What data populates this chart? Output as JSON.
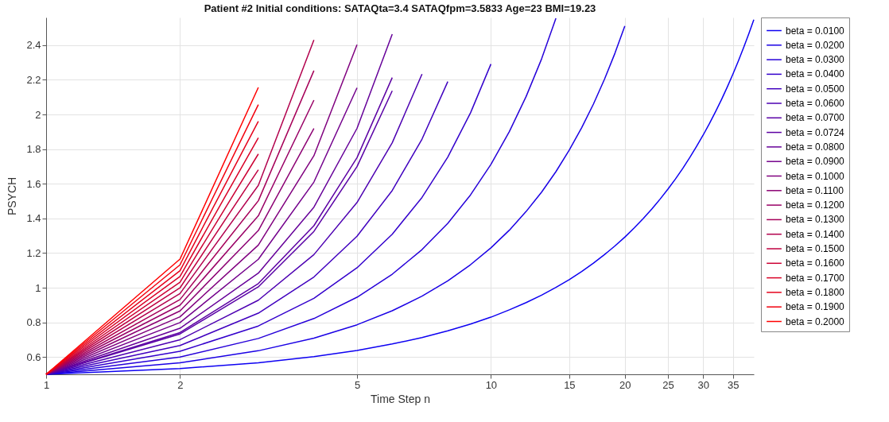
{
  "chart_data": {
    "type": "line",
    "title": "Patient #2 Initial conditions:  SATAQta=3.4 SATAQfpm=3.5833 Age=23 BMI=19.23",
    "xlabel": "Time Step n",
    "ylabel": "PSYCH",
    "log": "x",
    "grid": true,
    "legend": "right",
    "line_style": "solid",
    "xlim": [
      1,
      39
    ],
    "xticks": [
      1,
      2,
      5,
      10,
      15,
      20,
      25,
      30,
      35
    ],
    "ylim": [
      0.5,
      2.56
    ],
    "yticks": [
      0.6,
      0.8,
      1,
      1.2,
      1.4,
      1.6,
      1.8,
      2,
      2.2,
      2.4
    ],
    "series": [
      {
        "name": "beta = 0.0100",
        "color": "#0d00f2",
        "x": [
          1,
          2,
          3,
          4,
          5,
          6,
          7,
          8,
          9,
          10,
          11,
          12,
          13,
          14,
          15,
          16,
          17,
          18,
          19,
          20,
          21,
          22,
          23,
          24,
          25,
          26,
          27,
          28,
          29,
          30,
          31,
          32,
          33,
          34,
          35,
          36,
          37,
          38,
          39
        ],
        "values": [
          0.5,
          0.533,
          0.567,
          0.602,
          0.638,
          0.675,
          0.712,
          0.751,
          0.79,
          0.83,
          0.872,
          0.914,
          0.957,
          1.002,
          1.047,
          1.094,
          1.142,
          1.191,
          1.241,
          1.292,
          1.345,
          1.399,
          1.454,
          1.511,
          1.569,
          1.628,
          1.689,
          1.752,
          1.816,
          1.881,
          1.948,
          2.017,
          2.087,
          2.159,
          2.233,
          2.309,
          2.387,
          2.466,
          2.547
        ]
      },
      {
        "name": "beta = 0.0200",
        "color": "#1a00e5",
        "x": [
          1,
          2,
          3,
          4,
          5,
          6,
          7,
          8,
          9,
          10,
          11,
          12,
          13,
          14,
          15,
          16,
          17,
          18,
          19,
          20
        ],
        "values": [
          0.5,
          0.566,
          0.636,
          0.709,
          0.786,
          0.867,
          0.951,
          1.04,
          1.133,
          1.23,
          1.332,
          1.44,
          1.552,
          1.67,
          1.794,
          1.924,
          2.06,
          2.203,
          2.353,
          2.511
        ]
      },
      {
        "name": "beta = 0.0300",
        "color": "#2600d9",
        "x": [
          1,
          2,
          3,
          4,
          5,
          6,
          7,
          8,
          9,
          10,
          11,
          12,
          13,
          14
        ],
        "values": [
          0.5,
          0.6,
          0.707,
          0.822,
          0.945,
          1.078,
          1.22,
          1.372,
          1.536,
          1.712,
          1.901,
          2.104,
          2.321,
          2.555
        ]
      },
      {
        "name": "beta = 0.0400",
        "color": "#3300cc",
        "x": [
          1,
          2,
          3,
          4,
          5,
          6,
          7,
          8,
          9,
          10
        ],
        "values": [
          0.5,
          0.633,
          0.779,
          0.939,
          1.115,
          1.309,
          1.521,
          1.754,
          2.01,
          2.291
        ]
      },
      {
        "name": "beta = 0.0500",
        "color": "#4000bf",
        "x": [
          1,
          2,
          3,
          4,
          5,
          6,
          7,
          8
        ],
        "values": [
          0.5,
          0.666,
          0.853,
          1.062,
          1.297,
          1.561,
          1.858,
          2.19
        ]
      },
      {
        "name": "beta = 0.0600",
        "color": "#4d00b2",
        "x": [
          1,
          2,
          3,
          4,
          5,
          6,
          7
        ],
        "values": [
          0.5,
          0.7,
          0.928,
          1.191,
          1.492,
          1.837,
          2.233
        ]
      },
      {
        "name": "beta = 0.0700",
        "color": "#5900a6",
        "x": [
          1,
          2,
          3,
          4,
          5,
          6
        ],
        "values": [
          0.5,
          0.733,
          1.005,
          1.325,
          1.699,
          2.137
        ]
      },
      {
        "name": "beta = 0.0724",
        "color": "#5c00a3",
        "x": [
          1,
          2,
          3,
          4,
          5,
          6
        ],
        "values": [
          0.5,
          0.741,
          1.024,
          1.358,
          1.751,
          2.213
        ]
      },
      {
        "name": "beta = 0.0800",
        "color": "#660099",
        "x": [
          1,
          2,
          3,
          4,
          5,
          6
        ],
        "values": [
          0.5,
          0.766,
          1.084,
          1.465,
          1.92,
          2.464
        ]
      },
      {
        "name": "beta = 0.0900",
        "color": "#73008c",
        "x": [
          1,
          2,
          3,
          4,
          5
        ],
        "values": [
          0.5,
          0.799,
          1.164,
          1.61,
          2.154
        ]
      },
      {
        "name": "beta = 0.1000",
        "color": "#80007f",
        "x": [
          1,
          2,
          3,
          4,
          5
        ],
        "values": [
          0.5,
          0.832,
          1.246,
          1.762,
          2.403
        ]
      },
      {
        "name": "beta = 0.1100",
        "color": "#8c0073",
        "x": [
          1,
          2,
          3,
          4
        ],
        "values": [
          0.5,
          0.866,
          1.33,
          1.919
        ]
      },
      {
        "name": "beta = 0.1200",
        "color": "#990066",
        "x": [
          1,
          2,
          3,
          4
        ],
        "values": [
          0.5,
          0.899,
          1.415,
          2.083
        ]
      },
      {
        "name": "beta = 0.1300",
        "color": "#a60059",
        "x": [
          1,
          2,
          3,
          4
        ],
        "values": [
          0.5,
          0.932,
          1.502,
          2.253
        ]
      },
      {
        "name": "beta = 0.1400",
        "color": "#b2004d",
        "x": [
          1,
          2,
          3,
          4
        ],
        "values": [
          0.5,
          0.966,
          1.591,
          2.43
        ]
      },
      {
        "name": "beta = 0.1500",
        "color": "#bf0040",
        "x": [
          1,
          2,
          3
        ],
        "values": [
          0.5,
          0.999,
          1.681
        ]
      },
      {
        "name": "beta = 0.1600",
        "color": "#cc0033",
        "x": [
          1,
          2,
          3
        ],
        "values": [
          0.5,
          1.032,
          1.772
        ]
      },
      {
        "name": "beta = 0.1700",
        "color": "#d90026",
        "x": [
          1,
          2,
          3
        ],
        "values": [
          0.5,
          1.065,
          1.866
        ]
      },
      {
        "name": "beta = 0.1800",
        "color": "#e5001a",
        "x": [
          1,
          2,
          3
        ],
        "values": [
          0.5,
          1.098,
          1.961
        ]
      },
      {
        "name": "beta = 0.1900",
        "color": "#f2000d",
        "x": [
          1,
          2,
          3
        ],
        "values": [
          0.5,
          1.132,
          2.057
        ]
      },
      {
        "name": "beta = 0.2000",
        "color": "#ff0000",
        "x": [
          1,
          2,
          3
        ],
        "values": [
          0.5,
          1.165,
          2.156
        ]
      }
    ]
  }
}
